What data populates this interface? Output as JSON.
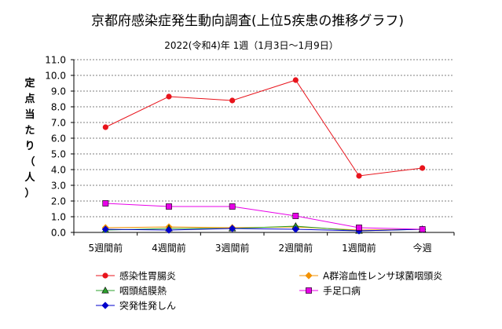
{
  "chart_data": {
    "type": "line",
    "title": "京都府感染症発生動向調査(上位5疾患の推移グラフ)",
    "subtitle": "2022(令和4)年 1週（1月3日～1月9日）",
    "ylabel_chars": [
      "定",
      "点",
      "当",
      "た",
      "り",
      "（",
      "人",
      "）"
    ],
    "ylim": [
      0,
      11
    ],
    "yticks": [
      "0.0",
      "1.0",
      "2.0",
      "3.0",
      "4.0",
      "5.0",
      "6.0",
      "7.0",
      "8.0",
      "9.0",
      "10.0",
      "11.0"
    ],
    "categories": [
      "5週間前",
      "4週間前",
      "3週間前",
      "2週間前",
      "1週間前",
      "今週"
    ],
    "grid": true,
    "legend_position": "bottom",
    "series": [
      {
        "name": "感染性胃腸炎",
        "color": "#e8141c",
        "marker": "circle",
        "values": [
          6.7,
          8.65,
          8.4,
          9.7,
          3.6,
          4.1
        ]
      },
      {
        "name": "A群溶血性レンサ球菌咽頭炎",
        "color": "#f39200",
        "marker": "diamond",
        "values": [
          0.3,
          0.35,
          0.3,
          0.35,
          0.15,
          0.2
        ]
      },
      {
        "name": "咽頭結膜熱",
        "color": "#2ca02c",
        "marker": "triangle",
        "values": [
          0.15,
          0.25,
          0.25,
          0.4,
          0.1,
          0.2
        ]
      },
      {
        "name": "手足口病",
        "color": "#e800e8",
        "marker": "square",
        "values": [
          1.85,
          1.65,
          1.65,
          1.05,
          0.3,
          0.2
        ]
      },
      {
        "name": "突発性発しん",
        "color": "#0000cc",
        "marker": "diamond",
        "values": [
          0.2,
          0.15,
          0.25,
          0.2,
          0.1,
          0.2
        ]
      }
    ]
  }
}
